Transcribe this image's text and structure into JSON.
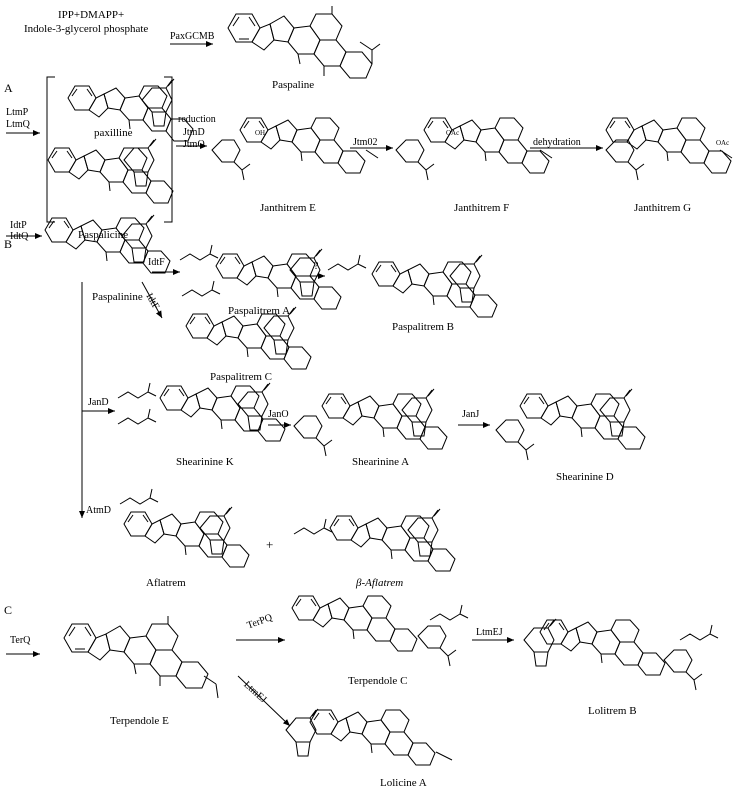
{
  "top": {
    "precursor_line1": "IPP+DMAPP+",
    "precursor_line2": "Indole-3-glycerol phosphate",
    "enzyme": "PaxGCMB",
    "product": "Paspaline"
  },
  "section_a": {
    "label": "A",
    "enzymes_in": [
      "LtmP",
      "LtmQ"
    ],
    "bracket_compounds": [
      "paxilline",
      "Paspalicine"
    ],
    "step2_enzymes": [
      "reduction",
      "JtmD",
      "JtmO"
    ],
    "compound_e": "Janthitrem E",
    "step3_enzyme": "Jtm02",
    "compound_f": "Janthitrem F",
    "step4_enzyme": "dehydration",
    "compound_g": "Janthitrem G"
  },
  "section_b": {
    "label": "B",
    "enzymes_in": [
      "IdtP",
      "IdtQ"
    ],
    "start": "Paspalinine",
    "enzyme_f": "IdtF",
    "enzyme_f2": "IdtF",
    "unknown_step": "?",
    "paspalitrem_a": "Paspalitrem A",
    "paspalitrem_b": "Paspalitrem B",
    "paspalitrem_c": "Paspalitrem C",
    "enzyme_jand": "JanD",
    "shearinine_k": "Shearinine K",
    "enzyme_jano": "JanO",
    "shearinine_a": "Shearinine A",
    "enzyme_janj": "JanJ",
    "shearinine_d": "Shearinine D",
    "enzyme_atmd": "AtmD",
    "aflatrem": "Aflatrem",
    "plus": "+",
    "beta_aflatrem": "β-Aflatrem"
  },
  "section_c": {
    "label": "C",
    "enzyme_in": "TerQ",
    "start": "Terpendole E",
    "enzyme_terpq": "TerPQ",
    "terpendole_c": "Terpendole C",
    "enzyme_ltmej1": "LtmEJ",
    "lolitrem_b": "Lolitrem B",
    "enzyme_ltmej2": "LtmEJ",
    "lolicine_a": "Lolicine A"
  },
  "atom_labels": {
    "h": "H",
    "oh": "OH",
    "oac": "OAc",
    "o": "O"
  }
}
